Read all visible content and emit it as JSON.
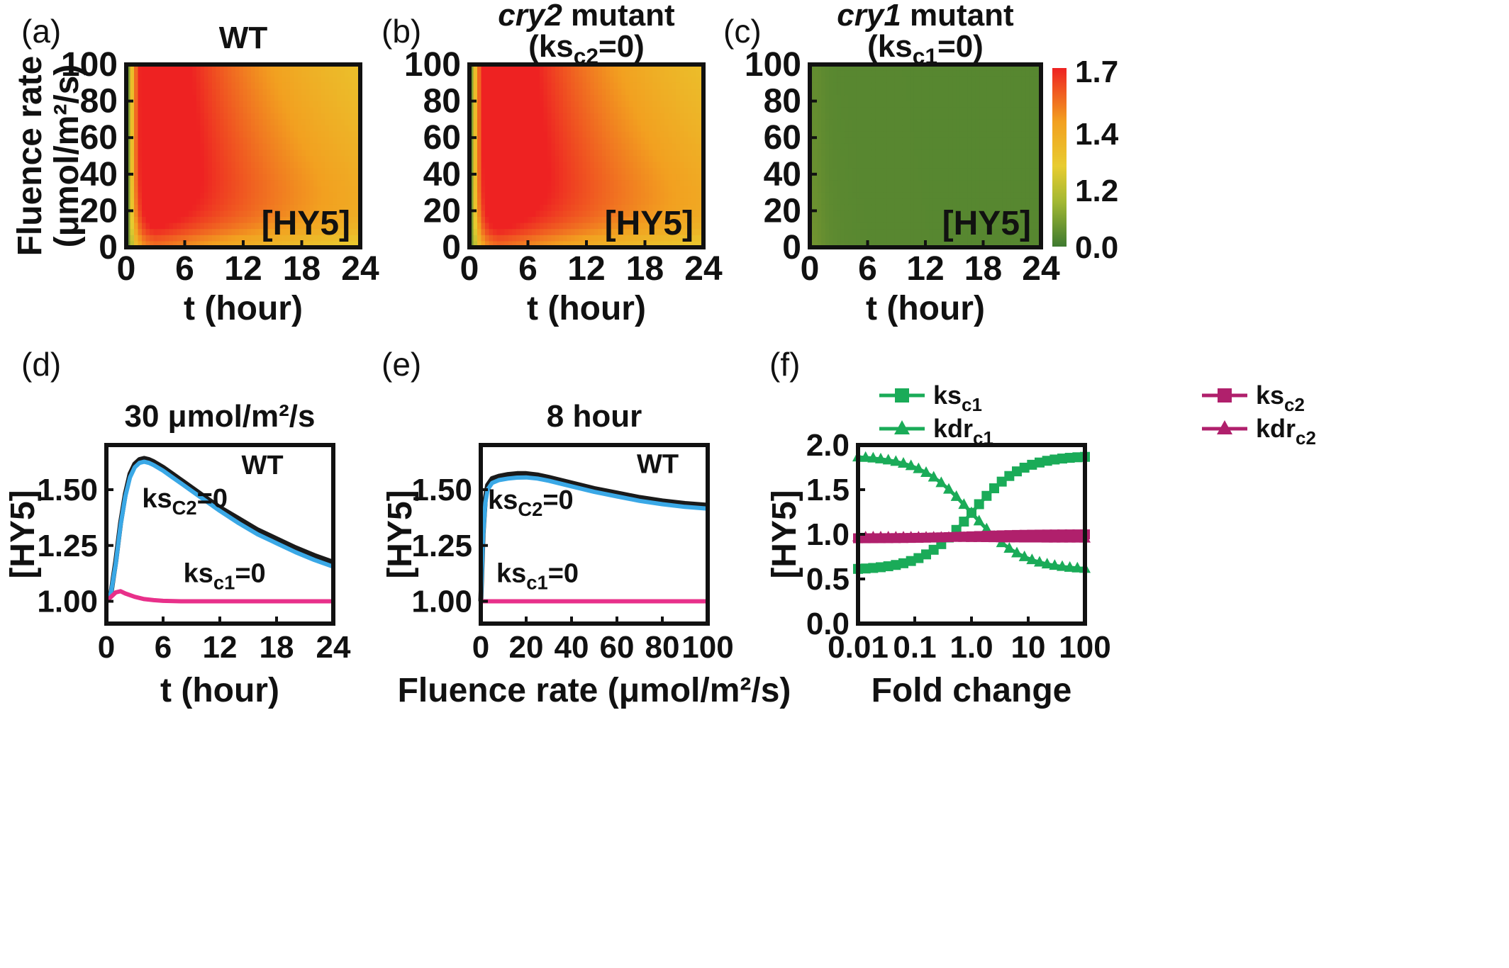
{
  "chart_data": [
    {
      "panel": "(a)",
      "type": "heatmap",
      "title": "WT",
      "xlabel": "t (hour)",
      "ylabel": [
        "Fluence rate",
        "(μmol/m²/s)"
      ],
      "xticks": [
        "0",
        "6",
        "12",
        "18",
        "24"
      ],
      "yticks": [
        "0",
        "20",
        "40",
        "60",
        "80",
        "100"
      ],
      "xlim": [
        0,
        24
      ],
      "ylim": [
        0,
        100
      ],
      "annotation": "[HY5]",
      "model": {
        "ks_c1": 1,
        "ks_c2": 1
      }
    },
    {
      "panel": "(b)",
      "type": "heatmap",
      "title": "cry2 mutant",
      "title_italic": "cry2",
      "title_rest": " mutant",
      "subtitle_pre": "(ks",
      "subtitle_sub": "c2",
      "subtitle_post": "=0)",
      "xlabel": "t (hour)",
      "xticks": [
        "0",
        "6",
        "12",
        "18",
        "24"
      ],
      "yticks": [
        "0",
        "20",
        "40",
        "60",
        "80",
        "100"
      ],
      "xlim": [
        0,
        24
      ],
      "ylim": [
        0,
        100
      ],
      "annotation": "[HY5]",
      "model": {
        "ks_c1": 1,
        "ks_c2": 0
      }
    },
    {
      "panel": "(c)",
      "type": "heatmap",
      "title": "cry1 mutant",
      "title_italic": "cry1",
      "title_rest": " mutant",
      "subtitle_pre": "(ks",
      "subtitle_sub": "c1",
      "subtitle_post": "=0)",
      "xlabel": "t (hour)",
      "xticks": [
        "0",
        "6",
        "12",
        "18",
        "24"
      ],
      "yticks": [
        "0",
        "20",
        "40",
        "60",
        "80",
        "100"
      ],
      "xlim": [
        0,
        24
      ],
      "ylim": [
        0,
        100
      ],
      "annotation": "[HY5]",
      "model": {
        "ks_c1": 0,
        "ks_c2": 1
      },
      "colorbar": {
        "ticks": [
          "1.7",
          "1.4",
          "1.2",
          "0.0"
        ],
        "colors": [
          "#ee2222",
          "#f2a020",
          "#e8cc30",
          "#a2b832",
          "#3e7a30"
        ]
      }
    },
    {
      "panel": "(d)",
      "type": "line",
      "title": "30 μmol/m²/s",
      "xlabel": "t (hour)",
      "ylabel": "[HY5]",
      "xlim": [
        0,
        24
      ],
      "ylim": [
        0.9,
        1.7
      ],
      "xticks": [
        "0",
        "6",
        "12",
        "18",
        "24"
      ],
      "yticks": [
        "1.00",
        "1.25",
        "1.50"
      ],
      "series": [
        {
          "name": "WT",
          "color": "#1a1a1a",
          "x": [
            0,
            0.5,
            1,
            1.5,
            2,
            2.5,
            3,
            3.5,
            4,
            4.5,
            5,
            6,
            7,
            8,
            9,
            10,
            12,
            14,
            16,
            18,
            20,
            22,
            24
          ],
          "y": [
            1.0,
            1.04,
            1.18,
            1.35,
            1.48,
            1.57,
            1.615,
            1.635,
            1.64,
            1.635,
            1.625,
            1.6,
            1.57,
            1.54,
            1.51,
            1.48,
            1.42,
            1.37,
            1.32,
            1.28,
            1.24,
            1.205,
            1.175
          ]
        },
        {
          "name": "ks_c2=0",
          "color": "#3aa8e6",
          "x": [
            0,
            0.5,
            1,
            1.5,
            2,
            2.5,
            3,
            3.5,
            4,
            4.5,
            5,
            6,
            7,
            8,
            9,
            10,
            12,
            14,
            16,
            18,
            20,
            22,
            24
          ],
          "y": [
            1.0,
            1.04,
            1.17,
            1.34,
            1.47,
            1.555,
            1.6,
            1.62,
            1.625,
            1.62,
            1.61,
            1.585,
            1.555,
            1.525,
            1.495,
            1.465,
            1.405,
            1.35,
            1.3,
            1.26,
            1.22,
            1.185,
            1.155
          ]
        },
        {
          "name": "ks_c1=0",
          "color": "#e8308a",
          "x": [
            0,
            0.5,
            1,
            1.5,
            2,
            3,
            4,
            5,
            6,
            8,
            10,
            12,
            16,
            20,
            24
          ],
          "y": [
            1.0,
            1.02,
            1.04,
            1.045,
            1.035,
            1.02,
            1.01,
            1.005,
            1.002,
            1.0,
            1.0,
            1.0,
            1.0,
            1.0,
            1.0
          ]
        }
      ],
      "labels": [
        {
          "text": "WT",
          "x": 16.5,
          "y": 1.57
        },
        {
          "pre": "ks",
          "sub": "C2",
          "post": "=0",
          "x": 8.3,
          "y": 1.42
        },
        {
          "pre": "ks",
          "sub": "c1",
          "post": "=0",
          "x": 12.5,
          "y": 1.085
        }
      ]
    },
    {
      "panel": "(e)",
      "type": "line",
      "title": "8 hour",
      "xlabel": "Fluence rate (μmol/m²/s)",
      "ylabel": "[HY5]",
      "xlim": [
        0,
        100
      ],
      "ylim": [
        0.9,
        1.7
      ],
      "xticks": [
        "0",
        "20",
        "40",
        "60",
        "80",
        "100"
      ],
      "yticks": [
        "1.00",
        "1.25",
        "1.50"
      ],
      "series": [
        {
          "name": "WT",
          "color": "#1a1a1a",
          "x": [
            0,
            1,
            2,
            3,
            5,
            8,
            12,
            16,
            20,
            25,
            30,
            40,
            50,
            60,
            70,
            80,
            90,
            100
          ],
          "y": [
            1.0,
            1.3,
            1.46,
            1.52,
            1.55,
            1.56,
            1.568,
            1.572,
            1.572,
            1.566,
            1.555,
            1.53,
            1.505,
            1.485,
            1.465,
            1.45,
            1.438,
            1.43
          ]
        },
        {
          "name": "ks_c2=0",
          "color": "#3aa8e6",
          "x": [
            0,
            1,
            2,
            3,
            5,
            8,
            12,
            16,
            20,
            25,
            30,
            40,
            50,
            60,
            70,
            80,
            90,
            100
          ],
          "y": [
            1.0,
            1.29,
            1.44,
            1.5,
            1.53,
            1.543,
            1.55,
            1.554,
            1.555,
            1.55,
            1.54,
            1.515,
            1.49,
            1.47,
            1.45,
            1.435,
            1.423,
            1.415
          ]
        },
        {
          "name": "ks_c1=0",
          "color": "#e8308a",
          "x": [
            0,
            10,
            20,
            40,
            60,
            80,
            100
          ],
          "y": [
            1.0,
            1.0,
            1.0,
            1.0,
            1.0,
            1.0,
            1.0
          ]
        }
      ],
      "labels": [
        {
          "text": "WT",
          "x": 78,
          "y": 1.575
        },
        {
          "pre": "ks",
          "sub": "C2",
          "post": "=0",
          "x": 22,
          "y": 1.415
        },
        {
          "pre": "ks",
          "sub": "c1",
          "post": "=0",
          "x": 25,
          "y": 1.085
        }
      ]
    },
    {
      "panel": "(f)",
      "type": "line",
      "xlabel": "Fold change",
      "ylabel": "[HY5]",
      "xscale": "log",
      "xlim": [
        0.01,
        100
      ],
      "ylim": [
        0,
        2
      ],
      "xticks": [
        "0.01",
        "0.1",
        "1.0",
        "10",
        "100"
      ],
      "yticks": [
        "0.0",
        "0.5",
        "1.0",
        "1.5",
        "2.0"
      ],
      "series": [
        {
          "name": "ks_c1",
          "label_pre": "ks",
          "label_sub": "c1",
          "marker": "square",
          "color": "#1aab58",
          "formula": "hill_up"
        },
        {
          "name": "kdr_c1",
          "label_pre": "kdr",
          "label_sub": "c1",
          "marker": "triangle",
          "color": "#1aab58",
          "formula": "hill_down"
        },
        {
          "name": "ks_c2",
          "label_pre": "ks",
          "label_sub": "c2",
          "marker": "square",
          "color": "#b0206c",
          "formula": "flat_up"
        },
        {
          "name": "kdr_c2",
          "label_pre": "kdr",
          "label_sub": "c2",
          "marker": "triangle",
          "color": "#b0206c",
          "formula": "flat_down"
        }
      ]
    }
  ]
}
